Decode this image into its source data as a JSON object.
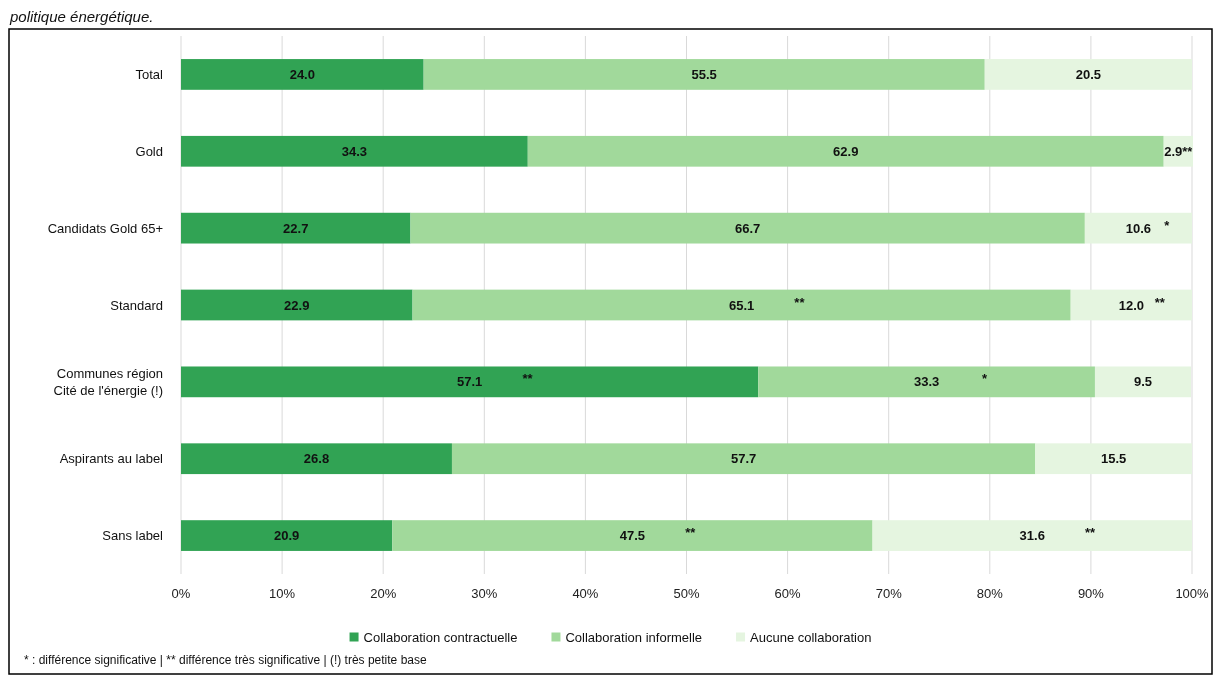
{
  "chart_data": {
    "type": "bar",
    "orientation": "horizontal",
    "stacked": true,
    "title": "politique énergétique.",
    "categories": [
      "Total",
      "Gold",
      "Candidats Gold 65+",
      "Standard",
      "Communes région Cité de l'énergie (!)",
      "Aspirants au label",
      "Sans label"
    ],
    "series": [
      {
        "name": "Collaboration contractuelle",
        "color": "#31a354",
        "values": [
          24.0,
          34.3,
          22.7,
          22.9,
          57.1,
          26.8,
          20.9
        ],
        "value_labels": [
          "24.0",
          "34.3",
          "22.7",
          "22.9",
          "57.1 **",
          "26.8",
          "20.9"
        ]
      },
      {
        "name": "Collaboration informelle",
        "color": "#a1d99b",
        "values": [
          55.5,
          62.9,
          66.7,
          65.1,
          33.3,
          57.7,
          47.5
        ],
        "value_labels": [
          "55.5",
          "62.9",
          "66.7",
          "65.1 **",
          "33.3 *",
          "57.7",
          "47.5 **"
        ]
      },
      {
        "name": "Aucune collaboration",
        "color": "#e5f5e0",
        "values": [
          20.5,
          2.9,
          10.6,
          12.0,
          9.5,
          15.5,
          31.6
        ],
        "value_labels": [
          "20.5",
          "2.9**",
          "10.6 *",
          "12.0 **",
          "9.5",
          "15.5",
          "31.6 **"
        ]
      }
    ],
    "xlim": [
      0,
      100
    ],
    "xticks": [
      {
        "value": 0,
        "label": "0%"
      },
      {
        "value": 10,
        "label": "10%"
      },
      {
        "value": 20,
        "label": "20%"
      },
      {
        "value": 30,
        "label": "30%"
      },
      {
        "value": 40,
        "label": "40%"
      },
      {
        "value": 50,
        "label": "50%"
      },
      {
        "value": 60,
        "label": "60%"
      },
      {
        "value": 70,
        "label": "70%"
      },
      {
        "value": 80,
        "label": "80%"
      },
      {
        "value": 90,
        "label": "90%"
      },
      {
        "value": 100,
        "label": "100%"
      }
    ],
    "grid": "x",
    "legend": "bottom",
    "annotations": [
      "* : différence significative | ** différence très significative | (!) très petite base"
    ]
  }
}
